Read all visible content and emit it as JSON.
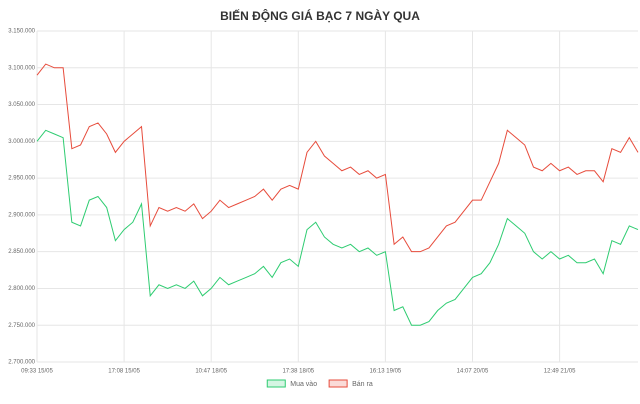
{
  "chart_data": {
    "type": "line",
    "title": "BIẾN ĐỘNG GIÁ BẠC 7 NGÀY QUA",
    "categories": [
      "09:33 15/05",
      null,
      null,
      null,
      null,
      null,
      null,
      null,
      null,
      null,
      "17:08 15/05",
      null,
      null,
      null,
      null,
      null,
      null,
      null,
      null,
      null,
      "10:47 18/05",
      null,
      null,
      null,
      null,
      null,
      null,
      null,
      null,
      null,
      "17:38 18/05",
      null,
      null,
      null,
      null,
      null,
      null,
      null,
      null,
      null,
      "16:13 19/05",
      null,
      null,
      null,
      null,
      null,
      null,
      null,
      null,
      null,
      "14:07 20/05",
      null,
      null,
      null,
      null,
      null,
      null,
      null,
      null,
      null,
      "12:49 21/05",
      null,
      null,
      null,
      null,
      null,
      null,
      null,
      null,
      null
    ],
    "series": [
      {
        "name": "Mua vào",
        "color": "#2ecc71",
        "values": [
          3000000,
          3015000,
          3010000,
          3005000,
          2890000,
          2885000,
          2920000,
          2925000,
          2910000,
          2865000,
          2880000,
          2890000,
          2915000,
          2790000,
          2805000,
          2800000,
          2805000,
          2800000,
          2810000,
          2790000,
          2800000,
          2815000,
          2805000,
          2810000,
          2815000,
          2820000,
          2830000,
          2815000,
          2835000,
          2840000,
          2830000,
          2880000,
          2890000,
          2870000,
          2860000,
          2855000,
          2860000,
          2850000,
          2855000,
          2845000,
          2850000,
          2770000,
          2775000,
          2750000,
          2750000,
          2755000,
          2770000,
          2780000,
          2785000,
          2800000,
          2815000,
          2820000,
          2835000,
          2860000,
          2895000,
          2885000,
          2875000,
          2850000,
          2840000,
          2850000,
          2840000,
          2845000,
          2835000,
          2835000,
          2840000,
          2820000,
          2865000,
          2860000,
          2885000,
          2880000
        ]
      },
      {
        "name": "Bán ra",
        "color": "#e74c3c",
        "values": [
          3090000,
          3105000,
          3100000,
          3100000,
          2990000,
          2995000,
          3020000,
          3025000,
          3010000,
          2985000,
          3000000,
          3010000,
          3020000,
          2885000,
          2910000,
          2905000,
          2910000,
          2905000,
          2915000,
          2895000,
          2905000,
          2920000,
          2910000,
          2915000,
          2920000,
          2925000,
          2935000,
          2920000,
          2935000,
          2940000,
          2935000,
          2985000,
          3000000,
          2980000,
          2970000,
          2960000,
          2965000,
          2955000,
          2960000,
          2950000,
          2955000,
          2860000,
          2870000,
          2850000,
          2850000,
          2855000,
          2870000,
          2885000,
          2890000,
          2905000,
          2920000,
          2920000,
          2945000,
          2970000,
          3015000,
          3005000,
          2995000,
          2965000,
          2960000,
          2970000,
          2960000,
          2965000,
          2955000,
          2960000,
          2960000,
          2945000,
          2990000,
          2985000,
          3005000,
          2985000
        ]
      }
    ],
    "ylim": [
      2700000,
      3150000
    ],
    "yticks": [
      {
        "value": 2700000,
        "label": "2.700.000"
      },
      {
        "value": 2750000,
        "label": "2.750.000"
      },
      {
        "value": 2800000,
        "label": "2.800.000"
      },
      {
        "value": 2850000,
        "label": "2.850.000"
      },
      {
        "value": 2900000,
        "label": "2.900.000"
      },
      {
        "value": 2950000,
        "label": "2.950.000"
      },
      {
        "value": 3000000,
        "label": "3.000.000"
      },
      {
        "value": 3050000,
        "label": "3.050.000"
      },
      {
        "value": 3100000,
        "label": "3.100.000"
      },
      {
        "value": 3150000,
        "label": "3.150.000"
      }
    ],
    "grid": true,
    "legend": "bottom"
  }
}
